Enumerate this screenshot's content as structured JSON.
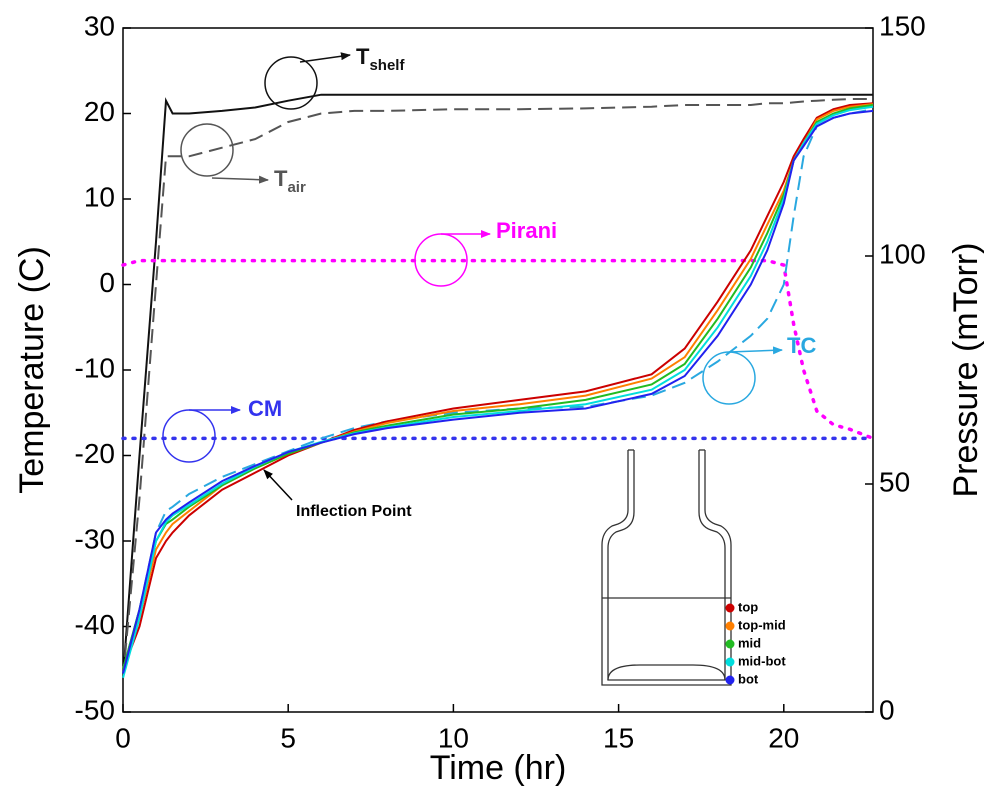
{
  "chart_data": {
    "type": "line",
    "x_label": "Time (hr)",
    "y_label": "Temperature (C)",
    "y2_label": "Pressure (mTorr)",
    "annotation": "Inflection Point",
    "xlim": [
      0,
      22.7
    ],
    "xticks": [
      0,
      5,
      10,
      15,
      20
    ],
    "ylim": [
      -50,
      30
    ],
    "yticks": [
      -50,
      -40,
      -30,
      -20,
      -10,
      0,
      10,
      20,
      30
    ],
    "y2lim": [
      0,
      150
    ],
    "y2ticks": [
      0,
      50,
      100,
      150
    ],
    "grid": false,
    "x": [
      0,
      0.5,
      1,
      1.3,
      1.5,
      2,
      3,
      4,
      5,
      6,
      7,
      8,
      10,
      12,
      14,
      16,
      17,
      18,
      19,
      19.5,
      20,
      20.3,
      20.6,
      21,
      21.5,
      22,
      22.7
    ],
    "series": [
      {
        "name": "T",
        "name_sub": "shelf",
        "color": "#111111",
        "style": "solid",
        "legend": false,
        "values": [
          -46,
          -20,
          5,
          21.5,
          20,
          20,
          20.3,
          20.7,
          21.5,
          22.2,
          22.2,
          22.2,
          22.2,
          22.2,
          22.2,
          22.2,
          22.2,
          22.2,
          22.2,
          22.2,
          22.2,
          22.2,
          22.2,
          22.2,
          22.2,
          22.2,
          22.2
        ]
      },
      {
        "name": "T",
        "name_sub": "air",
        "color": "#555555",
        "style": "dashed",
        "legend": false,
        "values": [
          -46,
          -25,
          0,
          15,
          15,
          15,
          16,
          17,
          19,
          20,
          20.3,
          20.3,
          20.5,
          20.5,
          20.6,
          20.8,
          21,
          21,
          21,
          21.2,
          21.2,
          21.3,
          21.4,
          21.5,
          21.6,
          21.7,
          21.7
        ]
      },
      {
        "name": "Pirani",
        "color": "#ff00ff",
        "style": "dotted",
        "axis": "y2",
        "legend": false,
        "values": [
          98,
          99,
          99,
          99,
          99,
          99,
          99,
          99,
          99,
          99,
          99,
          99,
          99,
          99,
          99,
          99,
          99,
          99,
          99,
          99,
          98,
          85,
          75,
          66,
          63,
          62,
          60
        ]
      },
      {
        "name": "CM",
        "color": "#3333ee",
        "style": "dotted",
        "axis": "y2",
        "legend": false,
        "values": [
          60,
          60,
          60,
          60,
          60,
          60,
          60,
          60,
          60,
          60,
          60,
          60,
          60,
          60,
          60,
          60,
          60,
          60,
          60,
          60,
          60,
          60,
          60,
          60,
          60,
          60,
          60
        ]
      },
      {
        "name": "TC",
        "color": "#29a8e0",
        "style": "dashed",
        "legend": false,
        "values": [
          -45,
          -38,
          -29,
          -26.5,
          -26,
          -24.5,
          -22.5,
          -21,
          -19.5,
          -18,
          -16.8,
          -16,
          -15,
          -14.5,
          -14.3,
          -13,
          -11.5,
          -9,
          -6,
          -4,
          0,
          8,
          15,
          18.5,
          19.5,
          20,
          20.5
        ]
      },
      {
        "name": "top",
        "color": "#cc0000",
        "style": "solid",
        "legend": true,
        "values": [
          -45,
          -40,
          -32,
          -30,
          -29,
          -27,
          -24,
          -22,
          -20,
          -18.5,
          -17,
          -16,
          -14.5,
          -13.5,
          -12.5,
          -10.5,
          -7.5,
          -2,
          4,
          8,
          12,
          15,
          17,
          19.5,
          20.5,
          21,
          21.2
        ]
      },
      {
        "name": "top-mid",
        "color": "#ff7f00",
        "style": "solid",
        "legend": true,
        "values": [
          -45,
          -39,
          -31,
          -29,
          -28,
          -26.5,
          -23.5,
          -21.5,
          -19.8,
          -18.5,
          -17.2,
          -16.2,
          -14.8,
          -14,
          -13,
          -11,
          -8.5,
          -3,
          3,
          7,
          11,
          14.5,
          16.5,
          19.3,
          20.3,
          20.8,
          21.1
        ]
      },
      {
        "name": "mid",
        "color": "#22bb22",
        "style": "solid",
        "legend": true,
        "values": [
          -45,
          -38,
          -30,
          -28,
          -27.5,
          -26,
          -23.5,
          -21.5,
          -19.8,
          -18.5,
          -17.3,
          -16.5,
          -15.2,
          -14.5,
          -13.5,
          -11.7,
          -9.3,
          -4,
          2,
          6,
          10.5,
          14.5,
          16.5,
          19,
          20,
          20.6,
          21
        ]
      },
      {
        "name": "mid-bot",
        "color": "#00dddd",
        "style": "solid",
        "legend": true,
        "values": [
          -46,
          -39,
          -30,
          -27.8,
          -27,
          -25.8,
          -23.3,
          -21.3,
          -19.6,
          -18.4,
          -17.4,
          -16.7,
          -15.5,
          -14.8,
          -14,
          -12.3,
          -10,
          -5,
          1,
          5,
          10,
          14.5,
          16.5,
          18.8,
          19.8,
          20.4,
          20.8
        ]
      },
      {
        "name": "bot",
        "color": "#2222ee",
        "style": "solid",
        "legend": true,
        "values": [
          -45.5,
          -38,
          -29,
          -27.5,
          -26.8,
          -25.5,
          -23,
          -21.2,
          -19.6,
          -18.5,
          -17.5,
          -16.8,
          -15.8,
          -15,
          -14.5,
          -12.8,
          -10.7,
          -6,
          0,
          4,
          9.5,
          14.5,
          16.2,
          18.5,
          19.5,
          20,
          20.3
        ]
      }
    ]
  }
}
